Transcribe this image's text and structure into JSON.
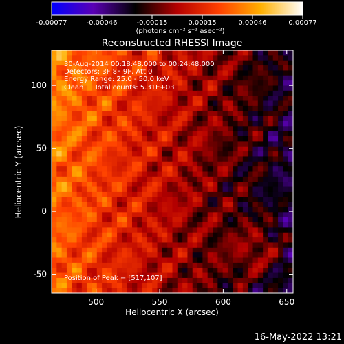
{
  "colorbar": {
    "ticks": [
      "-0.00077",
      "-0.00046",
      "-0.00015",
      "0.00015",
      "0.00046",
      "0.00077"
    ],
    "unit_label": "(photons cm⁻² s⁻¹ asec⁻²)",
    "range": [
      -0.00077,
      0.00077
    ],
    "colormap": [
      "#0000ff",
      "#5a00b4",
      "#000000",
      "#b40000",
      "#ff4000",
      "#ffb000",
      "#ffffff"
    ]
  },
  "info": {
    "line1": "30-Aug-2014 00:18:48.000 to 00:24:48.000",
    "line2": "Detectors: 3F 8F 9F, Att 0",
    "line3": "Energy Range: 25.0 - 50.0 keV",
    "line4": "Clean     Total counts: 5.31E+03",
    "peak": "Position of Peak = [517,107]"
  },
  "footer": {
    "date": "16-May-2022 13:21"
  },
  "chart_data": {
    "type": "heatmap",
    "title": "Reconstructed RHESSI Image",
    "xlabel": "Heliocentric X (arcsec)",
    "ylabel": "Heliocentric Y (arcsec)",
    "xlim": [
      465,
      655
    ],
    "ylim": [
      -65,
      128
    ],
    "xticks": [
      500,
      550,
      600,
      650
    ],
    "yticks": [
      -50,
      0,
      50,
      100
    ],
    "peak": [
      517,
      107
    ],
    "grid": {
      "cols": 48,
      "rows": 48
    }
  }
}
